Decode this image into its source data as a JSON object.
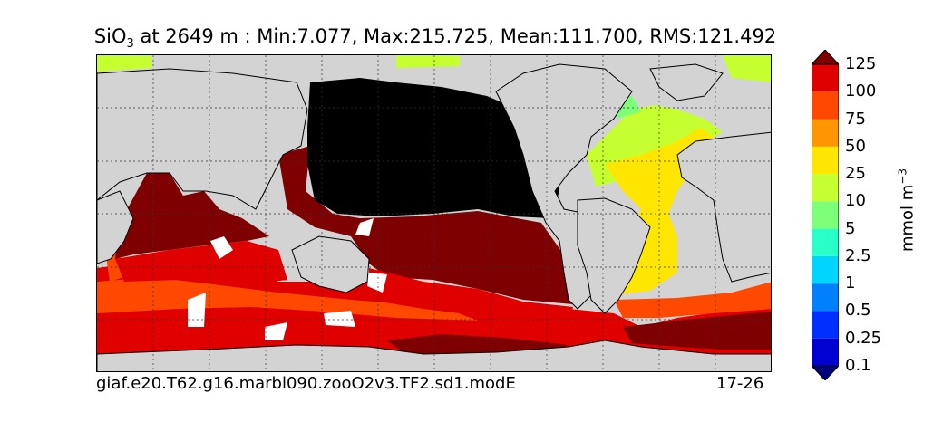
{
  "title": {
    "var": "SiO",
    "sub": "3",
    "rest": " at 2649 m : Min:7.077, Max:215.725, Mean:111.700, RMS:121.492"
  },
  "footer": {
    "case_name": "giaf.e20.T62.g16.marbl090.zooO2v3.TF2.sd1.modE",
    "years": "17-26"
  },
  "colorbar": {
    "units_text": "mmol m",
    "units_exp": "−3",
    "levels": [
      "0.1",
      "0.25",
      "0.5",
      "1",
      "2.5",
      "5",
      "10",
      "25",
      "50",
      "75",
      "100",
      "125"
    ],
    "colors": [
      "#00007f",
      "#0000d0",
      "#0030ff",
      "#0080ff",
      "#00d4ff",
      "#29ffc9",
      "#7dff7a",
      "#c6ff30",
      "#ffe600",
      "#ff9500",
      "#ff4800",
      "#e00000",
      "#7f0000"
    ],
    "extend": "both"
  },
  "map": {
    "land_color": "#d3d3d3",
    "missing_color": "#ffffff",
    "grid": true
  }
}
